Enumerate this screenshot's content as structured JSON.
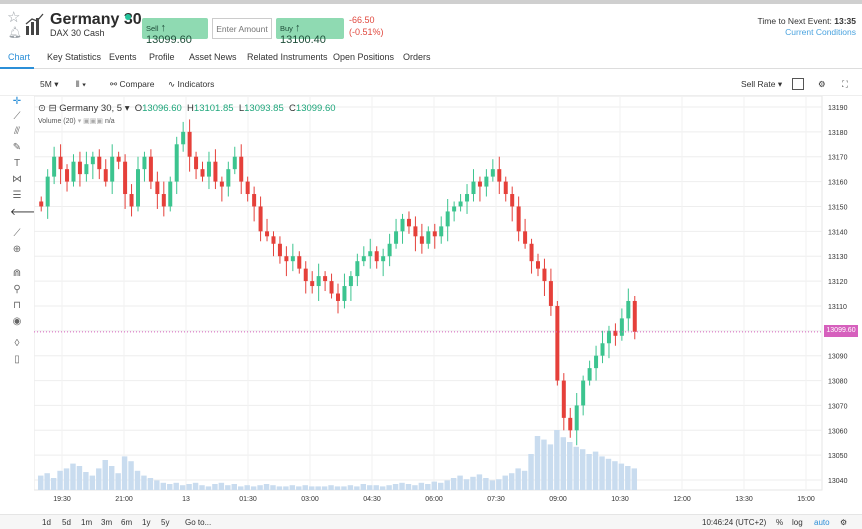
{
  "header": {
    "title": "Germany 30",
    "subtitle": "DAX 30 Cash",
    "sell_label": "Sell",
    "sell_price": "13099.60",
    "amount_placeholder": "Enter Amount",
    "buy_label": "Buy",
    "buy_price": "13100.40",
    "change_abs": "-66.50",
    "change_pct": "(-0.51%)",
    "next_event_label": "Time to Next Event:",
    "next_event_value": "13:35",
    "current_conditions": "Current Conditions"
  },
  "tabs": [
    "Chart",
    "Key Statistics",
    "Events",
    "Profile",
    "Asset News",
    "Related Instruments",
    "Open Positions",
    "Orders"
  ],
  "toolbar": {
    "interval": "5M",
    "compare": "Compare",
    "indicators": "Indicators",
    "rate": "Sell Rate"
  },
  "legend": {
    "name": "Germany 30, 5",
    "o_label": "O",
    "o": "13096.60",
    "h_label": "H",
    "h": "13101.85",
    "l_label": "L",
    "l": "13093.85",
    "c_label": "C",
    "c": "13099.60",
    "volume": "Volume (20)",
    "vol_val": "n/a"
  },
  "price_tag": "13099.60",
  "bottom": {
    "ranges": [
      "1d",
      "5d",
      "1m",
      "3m",
      "6m",
      "1y",
      "5y",
      "Go to..."
    ],
    "clock": "10:46:24 (UTC+2)",
    "pct": "%",
    "log": "log",
    "auto": "auto"
  },
  "colors": {
    "up": "#3cc48f",
    "down": "#e5403a",
    "accent": "#2b8fd8",
    "volume": "#c9dcef"
  },
  "chart_data": {
    "type": "candlestick",
    "y_ticks": [
      13190,
      13180,
      13170,
      13160,
      13150,
      13140,
      13130,
      13120,
      13110,
      13100,
      13090,
      13080,
      13070,
      13060,
      13050,
      13040
    ],
    "x_ticks": [
      "19:30",
      "21:00",
      "13",
      "01:30",
      "03:00",
      "04:30",
      "06:00",
      "07:30",
      "09:00",
      "10:30",
      "12:00",
      "13:30",
      "15:00"
    ],
    "ylim": [
      13036,
      13192
    ],
    "current_price": 13099.6,
    "closes": [
      13150,
      13162,
      13170,
      13165,
      13160,
      13168,
      13163,
      13167,
      13170,
      13165,
      13160,
      13170,
      13168,
      13155,
      13150,
      13165,
      13170,
      13160,
      13155,
      13150,
      13160,
      13175,
      13180,
      13170,
      13165,
      13162,
      13168,
      13160,
      13158,
      13165,
      13170,
      13160,
      13155,
      13150,
      13140,
      13138,
      13135,
      13130,
      13128,
      13130,
      13125,
      13120,
      13118,
      13122,
      13120,
      13115,
      13112,
      13118,
      13122,
      13128,
      13130,
      13132,
      13128,
      13130,
      13135,
      13140,
      13145,
      13142,
      13138,
      13135,
      13140,
      13138,
      13142,
      13148,
      13150,
      13152,
      13155,
      13160,
      13158,
      13162,
      13165,
      13160,
      13155,
      13150,
      13140,
      13135,
      13128,
      13125,
      13120,
      13110,
      13080,
      13065,
      13060,
      13070,
      13080,
      13085,
      13090,
      13095,
      13100,
      13098,
      13105,
      13112,
      13099.6
    ],
    "volume": [
      12,
      14,
      10,
      16,
      18,
      22,
      20,
      15,
      12,
      18,
      25,
      20,
      14,
      28,
      24,
      16,
      12,
      10,
      8,
      6,
      5,
      6,
      4,
      5,
      6,
      4,
      3,
      5,
      6,
      4,
      5,
      3,
      4,
      3,
      4,
      5,
      4,
      3,
      3,
      4,
      3,
      4,
      3,
      3,
      3,
      4,
      3,
      3,
      4,
      3,
      5,
      4,
      4,
      3,
      4,
      5,
      6,
      5,
      4,
      6,
      5,
      7,
      6,
      8,
      10,
      12,
      9,
      11,
      13,
      10,
      8,
      9,
      12,
      14,
      18,
      16,
      30,
      45,
      42,
      38,
      50,
      44,
      40,
      36,
      34,
      30,
      32,
      28,
      26,
      24,
      22,
      20,
      18
    ]
  }
}
